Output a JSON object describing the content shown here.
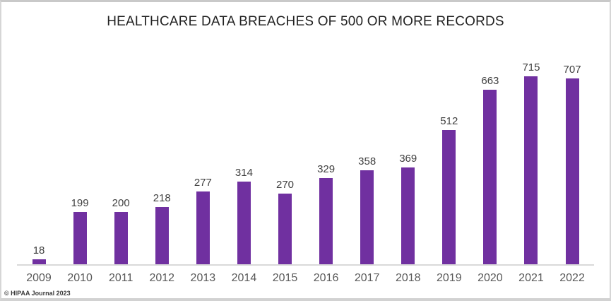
{
  "chart": {
    "title": "HEALTHCARE DATA BREACHES OF 500 OR MORE RECORDS",
    "source_credit": "© HIPAA Journal 2023",
    "bar_color": "#7030A0",
    "axis_line_color": "#d9d9d9",
    "value_label_color": "#404040",
    "tick_label_color": "#595959"
  },
  "chart_data": {
    "type": "bar",
    "title": "HEALTHCARE DATA BREACHES OF 500 OR MORE RECORDS",
    "categories": [
      "2009",
      "2010",
      "2011",
      "2012",
      "2013",
      "2014",
      "2015",
      "2016",
      "2017",
      "2018",
      "2019",
      "2020",
      "2021",
      "2022"
    ],
    "values": [
      18,
      199,
      200,
      218,
      277,
      314,
      270,
      329,
      358,
      369,
      512,
      663,
      715,
      707
    ],
    "xlabel": "",
    "ylabel": "",
    "ylim": [
      0,
      800
    ],
    "grid": false,
    "legend": false,
    "data_labels": true,
    "annotations": [
      "© HIPAA Journal 2023"
    ]
  }
}
